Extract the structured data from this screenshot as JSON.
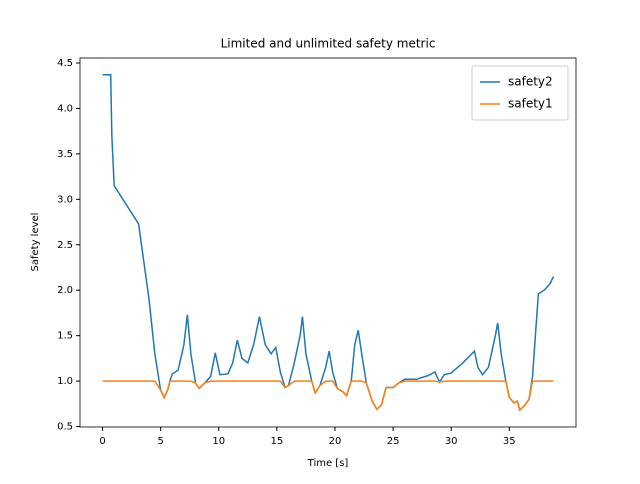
{
  "chart_data": {
    "type": "line",
    "title": "Limited and unlimited safety metric",
    "x_label": "Time [s]",
    "y_label": "Safety level",
    "x": [
      0,
      0.7,
      0.8,
      1.0,
      3.0,
      3.1,
      4,
      4.5,
      5,
      5.3,
      5.6,
      5.8,
      6,
      6.5,
      7,
      7.3,
      7.6,
      8,
      8.3,
      8.8,
      9.3,
      9.7,
      10.1,
      10.8,
      11.2,
      11.6,
      12,
      12.5,
      13,
      13.5,
      14,
      14.5,
      14.9,
      15.3,
      15.7,
      16,
      16.5,
      17,
      17.2,
      17.5,
      18,
      18.3,
      18.7,
      19.2,
      19.5,
      19.8,
      20.2,
      20.7,
      21,
      21.4,
      21.7,
      22,
      22.3,
      22.7,
      23.2,
      23.6,
      24,
      24.4,
      25,
      25.5,
      26,
      27,
      28,
      28.6,
      29,
      29.4,
      30,
      31,
      32,
      32.3,
      32.7,
      33.2,
      33.8,
      34,
      34.3,
      34.7,
      35,
      35.4,
      35.7,
      35.9,
      36.3,
      36.7,
      37,
      37.3,
      37.5,
      38,
      38.5,
      38.8
    ],
    "series": [
      {
        "name": "safety2",
        "color": "#1f77b4",
        "values": [
          4.37,
          4.37,
          3.7,
          3.15,
          2.75,
          2.73,
          1.9,
          1.3,
          0.9,
          0.82,
          0.9,
          1.0,
          1.08,
          1.12,
          1.4,
          1.73,
          1.3,
          0.98,
          0.92,
          0.98,
          1.05,
          1.31,
          1.07,
          1.08,
          1.2,
          1.45,
          1.25,
          1.2,
          1.4,
          1.71,
          1.4,
          1.3,
          1.37,
          1.1,
          0.93,
          0.95,
          1.2,
          1.5,
          1.71,
          1.3,
          1.0,
          0.87,
          0.95,
          1.15,
          1.33,
          1.1,
          0.92,
          0.88,
          0.84,
          1.0,
          1.4,
          1.56,
          1.3,
          0.98,
          0.78,
          0.69,
          0.74,
          0.93,
          0.93,
          0.98,
          1.02,
          1.02,
          1.06,
          1.1,
          0.99,
          1.07,
          1.09,
          1.2,
          1.33,
          1.15,
          1.07,
          1.15,
          1.5,
          1.64,
          1.3,
          1.0,
          0.82,
          0.76,
          0.78,
          0.68,
          0.73,
          0.8,
          1.05,
          1.6,
          1.96,
          2.0,
          2.07,
          2.15
        ]
      },
      {
        "name": "safety1",
        "color": "#ff7f0e",
        "values": [
          1.0,
          1.0,
          1.0,
          1.0,
          1.0,
          1.0,
          1.0,
          1.0,
          0.9,
          0.82,
          0.9,
          1.0,
          1.0,
          1.0,
          1.0,
          1.0,
          1.0,
          0.98,
          0.92,
          0.98,
          1.0,
          1.0,
          1.0,
          1.0,
          1.0,
          1.0,
          1.0,
          1.0,
          1.0,
          1.0,
          1.0,
          1.0,
          1.0,
          1.0,
          0.93,
          0.95,
          1.0,
          1.0,
          1.0,
          1.0,
          1.0,
          0.87,
          0.95,
          1.0,
          1.0,
          1.0,
          0.92,
          0.88,
          0.84,
          1.0,
          1.0,
          1.0,
          1.0,
          0.98,
          0.78,
          0.69,
          0.74,
          0.93,
          0.93,
          0.98,
          1.0,
          1.0,
          1.0,
          1.0,
          0.99,
          1.0,
          1.0,
          1.0,
          1.0,
          1.0,
          1.0,
          1.0,
          1.0,
          1.0,
          1.0,
          1.0,
          0.82,
          0.76,
          0.78,
          0.68,
          0.73,
          0.8,
          1.0,
          1.0,
          1.0,
          1.0,
          1.0,
          1.0
        ]
      }
    ],
    "xlim": [
      -1.94,
      40.74
    ],
    "ylim": [
      0.495,
      4.555
    ],
    "xticks": [
      0,
      5,
      10,
      15,
      20,
      25,
      30,
      35
    ],
    "yticks": [
      0.5,
      {
        "value": 1.0,
        "label": "1.0"
      },
      1.5,
      {
        "value": 2.0,
        "label": "2.0"
      },
      2.5,
      {
        "value": 3.0,
        "label": "3.0"
      },
      3.5,
      {
        "value": 4.0,
        "label": "4.0"
      },
      4.5
    ],
    "legend": "upper right"
  }
}
